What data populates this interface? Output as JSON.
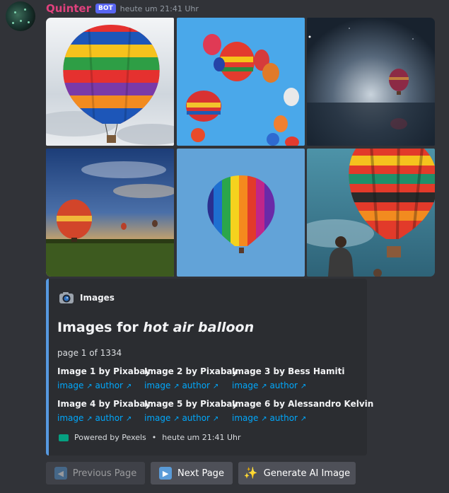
{
  "message": {
    "username": "Quinter",
    "badge": "BOT",
    "timestamp": "heute um 21:41 Uhr"
  },
  "images": [
    {
      "alt": "Hot air balloon against cloudy sky"
    },
    {
      "alt": "Many colorful balloons in blue sky"
    },
    {
      "alt": "Balloon over water at night"
    },
    {
      "alt": "Balloons over field at sunset"
    },
    {
      "alt": "Rainbow balloon in blue sky"
    },
    {
      "alt": "Balloon with man in foreground"
    }
  ],
  "embed": {
    "author": "Images",
    "author_icon": "camera-icon",
    "accent_color": "#5799e0",
    "title_prefix": "Images for",
    "title_query": "hot air balloon",
    "description": "page 1 of 1334",
    "fields": [
      {
        "name": "Image 1 by Pixabay",
        "image_link": "image",
        "author_link": "author"
      },
      {
        "name": "Image 2 by Pixabay",
        "image_link": "image",
        "author_link": "author"
      },
      {
        "name": "Image 3 by Bess Hamiti",
        "image_link": "image",
        "author_link": "author"
      },
      {
        "name": "Image 4 by Pixabay",
        "image_link": "image",
        "author_link": "author"
      },
      {
        "name": "Image 5 by Pixabay",
        "image_link": "image",
        "author_link": "author"
      },
      {
        "name": "Image 6 by Alessandro Kelvin",
        "image_link": "image",
        "author_link": "author"
      }
    ],
    "footer_text": "Powered by Pexels",
    "footer_sep": "•",
    "footer_timestamp": "heute um 21:41 Uhr"
  },
  "buttons": {
    "previous": {
      "label": "Previous Page",
      "icon": "arrow-left-icon",
      "disabled": true
    },
    "next": {
      "label": "Next Page",
      "icon": "arrow-right-icon",
      "disabled": false
    },
    "generate": {
      "label": "Generate AI Image",
      "icon": "sparkles-icon",
      "disabled": false
    }
  }
}
